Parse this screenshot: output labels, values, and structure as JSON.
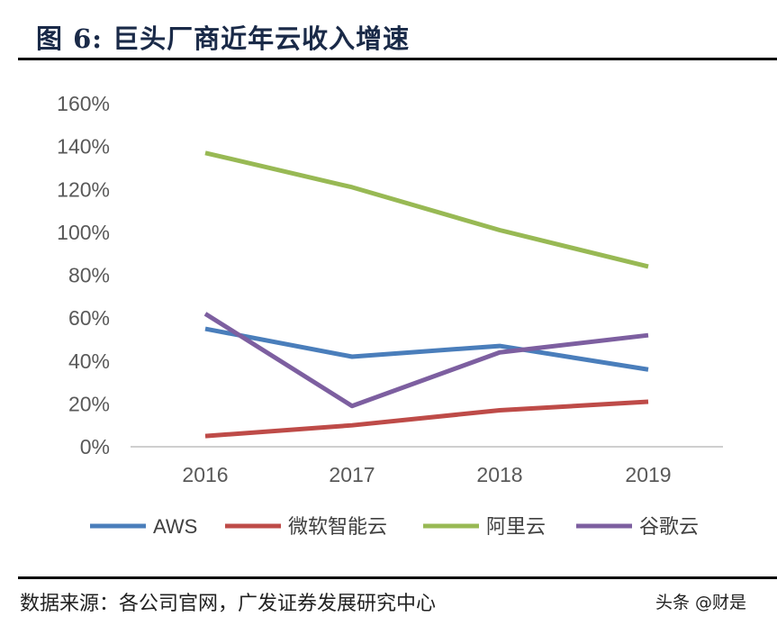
{
  "title": "图 6:  巨头厂商近年云收入增速",
  "source": "数据来源：各公司官网，广发证券发展研究中心",
  "watermark": "头条 @财是",
  "chart_data": {
    "type": "line",
    "categories": [
      "2016",
      "2017",
      "2018",
      "2019"
    ],
    "ylim": [
      0,
      160
    ],
    "yticks": [
      "0%",
      "20%",
      "40%",
      "60%",
      "80%",
      "100%",
      "120%",
      "140%",
      "160%"
    ],
    "grid": false,
    "legend": "bottom",
    "series": [
      {
        "name": "AWS",
        "color": "#4a7ebb",
        "values": [
          55,
          42,
          47,
          36
        ]
      },
      {
        "name": "微软智能云",
        "color": "#be4b48",
        "values": [
          5,
          10,
          17,
          21
        ]
      },
      {
        "name": "阿里云",
        "color": "#98b954",
        "values": [
          137,
          121,
          101,
          84
        ]
      },
      {
        "name": "谷歌云",
        "color": "#7d5fa0",
        "values": [
          62,
          19,
          44,
          52
        ]
      }
    ]
  }
}
